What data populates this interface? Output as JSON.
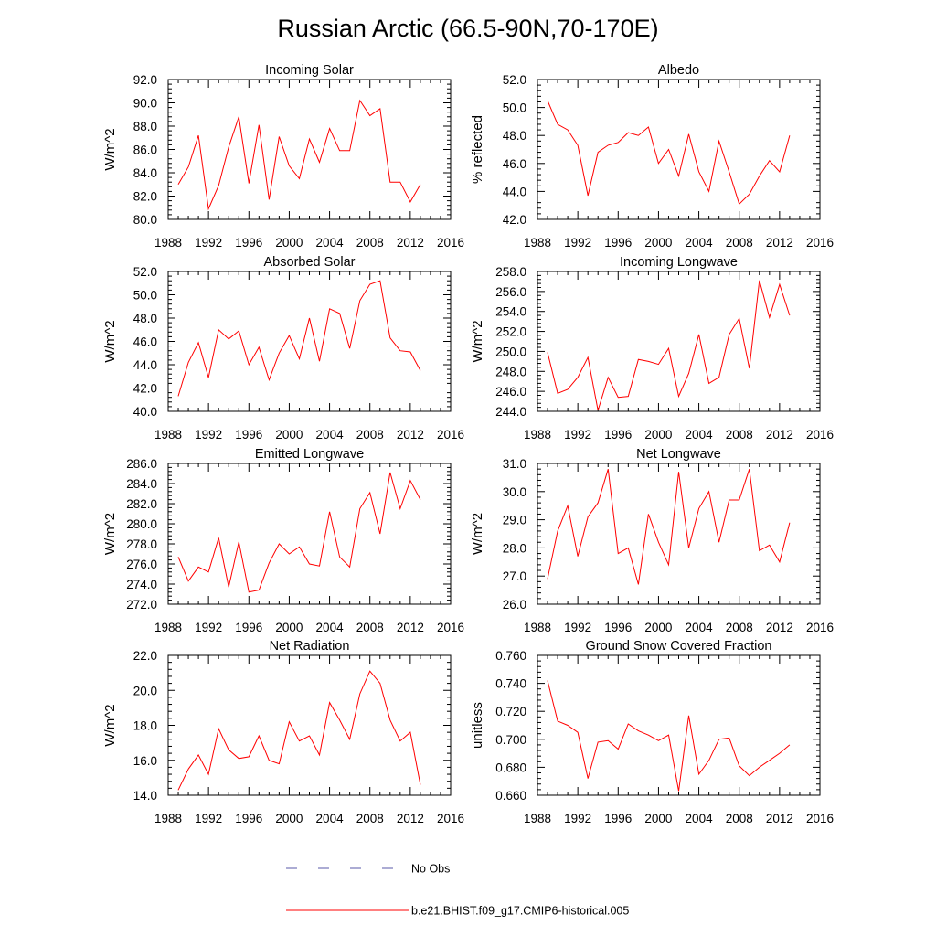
{
  "title": "Russian Arctic (66.5-90N,70-170E)",
  "colors": {
    "model": "#ff0000",
    "obs": "#5a5aa8",
    "axis": "#000000"
  },
  "legend": [
    {
      "label": "No Obs",
      "style": "dashed",
      "color": "#5a5aa8"
    },
    {
      "label": "b.e21.BHIST.f09_g17.CMIP6-historical.005",
      "style": "solid",
      "color": "#ff0000"
    }
  ],
  "chart_data": [
    {
      "type": "line",
      "title": "Incoming Solar",
      "ylabel": "W/m^2",
      "xlim": [
        1988,
        2016
      ],
      "xticks": [
        1988,
        1992,
        1996,
        2000,
        2004,
        2008,
        2012,
        2016
      ],
      "xtick_labels": [
        "1988",
        "1992",
        "1996",
        "2000",
        "2004",
        "2008",
        "2012",
        "2016"
      ],
      "ylim": [
        80.0,
        92.0
      ],
      "yticks": [
        80.0,
        82.0,
        84.0,
        86.0,
        88.0,
        90.0,
        92.0
      ],
      "ytick_labels": [
        "80.0",
        "82.0",
        "84.0",
        "86.0",
        "88.0",
        "90.0",
        "92.0"
      ],
      "x": [
        1989,
        1990,
        1991,
        1992,
        1993,
        1994,
        1995,
        1996,
        1997,
        1998,
        1999,
        2000,
        2001,
        2002,
        2003,
        2004,
        2005,
        2006,
        2007,
        2008,
        2009,
        2010,
        2011,
        2012,
        2013
      ],
      "series": [
        {
          "name": "b.e21.BHIST.f09_g17.CMIP6-historical.005",
          "values": [
            83.0,
            84.5,
            87.2,
            80.9,
            82.9,
            86.2,
            88.8,
            83.1,
            88.1,
            81.7,
            87.1,
            84.6,
            83.5,
            86.9,
            84.9,
            87.8,
            85.9,
            85.9,
            90.2,
            88.9,
            89.5,
            83.2,
            83.2,
            81.5,
            83.0
          ]
        }
      ]
    },
    {
      "type": "line",
      "title": "Albedo",
      "ylabel": "% reflected",
      "xlim": [
        1988,
        2016
      ],
      "xticks": [
        1988,
        1992,
        1996,
        2000,
        2004,
        2008,
        2012,
        2016
      ],
      "xtick_labels": [
        "1988",
        "1992",
        "1996",
        "2000",
        "2004",
        "2008",
        "2012",
        "2016"
      ],
      "ylim": [
        42.0,
        52.0
      ],
      "yticks": [
        42.0,
        44.0,
        46.0,
        48.0,
        50.0,
        52.0
      ],
      "ytick_labels": [
        "42.0",
        "44.0",
        "46.0",
        "48.0",
        "50.0",
        "52.0"
      ],
      "x": [
        1989,
        1990,
        1991,
        1992,
        1993,
        1994,
        1995,
        1996,
        1997,
        1998,
        1999,
        2000,
        2001,
        2002,
        2003,
        2004,
        2005,
        2006,
        2007,
        2008,
        2009,
        2010,
        2011,
        2012,
        2013
      ],
      "series": [
        {
          "name": "b.e21.BHIST.f09_g17.CMIP6-historical.005",
          "values": [
            50.5,
            48.8,
            48.4,
            47.3,
            43.7,
            46.8,
            47.3,
            47.5,
            48.2,
            48.0,
            48.6,
            46.0,
            47.0,
            45.1,
            48.1,
            45.4,
            44.0,
            47.6,
            45.4,
            43.1,
            43.8,
            45.1,
            46.2,
            45.4,
            48.0
          ]
        }
      ]
    },
    {
      "type": "line",
      "title": "Absorbed Solar",
      "ylabel": "W/m^2",
      "xlim": [
        1988,
        2016
      ],
      "xticks": [
        1988,
        1992,
        1996,
        2000,
        2004,
        2008,
        2012,
        2016
      ],
      "xtick_labels": [
        "1988",
        "1992",
        "1996",
        "2000",
        "2004",
        "2008",
        "2012",
        "2016"
      ],
      "ylim": [
        40.0,
        52.0
      ],
      "yticks": [
        40.0,
        42.0,
        44.0,
        46.0,
        48.0,
        50.0,
        52.0
      ],
      "ytick_labels": [
        "40.0",
        "42.0",
        "44.0",
        "46.0",
        "48.0",
        "50.0",
        "52.0"
      ],
      "x": [
        1989,
        1990,
        1991,
        1992,
        1993,
        1994,
        1995,
        1996,
        1997,
        1998,
        1999,
        2000,
        2001,
        2002,
        2003,
        2004,
        2005,
        2006,
        2007,
        2008,
        2009,
        2010,
        2011,
        2012,
        2013
      ],
      "series": [
        {
          "name": "b.e21.BHIST.f09_g17.CMIP6-historical.005",
          "values": [
            41.3,
            44.2,
            45.9,
            42.9,
            47.0,
            46.2,
            46.9,
            44.0,
            45.5,
            42.7,
            45.0,
            46.5,
            44.5,
            48.0,
            44.3,
            48.8,
            48.4,
            45.4,
            49.5,
            50.9,
            51.2,
            46.3,
            45.2,
            45.1,
            43.5
          ]
        }
      ]
    },
    {
      "type": "line",
      "title": "Incoming Longwave",
      "ylabel": "W/m^2",
      "xlim": [
        1988,
        2016
      ],
      "xticks": [
        1988,
        1992,
        1996,
        2000,
        2004,
        2008,
        2012,
        2016
      ],
      "xtick_labels": [
        "1988",
        "1992",
        "1996",
        "2000",
        "2004",
        "2008",
        "2012",
        "2016"
      ],
      "ylim": [
        244.0,
        258.0
      ],
      "yticks": [
        244.0,
        246.0,
        248.0,
        250.0,
        252.0,
        254.0,
        256.0,
        258.0
      ],
      "ytick_labels": [
        "244.0",
        "246.0",
        "248.0",
        "250.0",
        "252.0",
        "254.0",
        "256.0",
        "258.0"
      ],
      "x": [
        1989,
        1990,
        1991,
        1992,
        1993,
        1994,
        1995,
        1996,
        1997,
        1998,
        1999,
        2000,
        2001,
        2002,
        2003,
        2004,
        2005,
        2006,
        2007,
        2008,
        2009,
        2010,
        2011,
        2012,
        2013
      ],
      "series": [
        {
          "name": "b.e21.BHIST.f09_g17.CMIP6-historical.005",
          "values": [
            249.9,
            245.8,
            246.2,
            247.4,
            249.4,
            244.1,
            247.4,
            245.4,
            245.5,
            249.2,
            249.0,
            248.7,
            250.3,
            245.5,
            247.8,
            251.7,
            246.8,
            247.4,
            251.7,
            253.3,
            248.3,
            257.1,
            253.4,
            256.7,
            253.6
          ]
        }
      ]
    },
    {
      "type": "line",
      "title": "Emitted Longwave",
      "ylabel": "W/m^2",
      "xlim": [
        1988,
        2016
      ],
      "xticks": [
        1988,
        1992,
        1996,
        2000,
        2004,
        2008,
        2012,
        2016
      ],
      "xtick_labels": [
        "1988",
        "1992",
        "1996",
        "2000",
        "2004",
        "2008",
        "2012",
        "2016"
      ],
      "ylim": [
        272.0,
        286.0
      ],
      "yticks": [
        272.0,
        274.0,
        276.0,
        278.0,
        280.0,
        282.0,
        284.0,
        286.0
      ],
      "ytick_labels": [
        "272.0",
        "274.0",
        "276.0",
        "278.0",
        "280.0",
        "282.0",
        "284.0",
        "286.0"
      ],
      "x": [
        1989,
        1990,
        1991,
        1992,
        1993,
        1994,
        1995,
        1996,
        1997,
        1998,
        1999,
        2000,
        2001,
        2002,
        2003,
        2004,
        2005,
        2006,
        2007,
        2008,
        2009,
        2010,
        2011,
        2012,
        2013
      ],
      "series": [
        {
          "name": "b.e21.BHIST.f09_g17.CMIP6-historical.005",
          "values": [
            276.7,
            274.3,
            275.7,
            275.2,
            278.6,
            273.7,
            278.2,
            273.2,
            273.4,
            276.1,
            278.0,
            277.0,
            277.7,
            276.0,
            275.8,
            281.2,
            276.7,
            275.7,
            281.5,
            283.1,
            279.0,
            285.1,
            281.5,
            284.3,
            282.4
          ]
        }
      ]
    },
    {
      "type": "line",
      "title": "Net Longwave",
      "ylabel": "W/m^2",
      "xlim": [
        1988,
        2016
      ],
      "xticks": [
        1988,
        1992,
        1996,
        2000,
        2004,
        2008,
        2012,
        2016
      ],
      "xtick_labels": [
        "1988",
        "1992",
        "1996",
        "2000",
        "2004",
        "2008",
        "2012",
        "2016"
      ],
      "ylim": [
        26.0,
        31.0
      ],
      "yticks": [
        26.0,
        27.0,
        28.0,
        29.0,
        30.0,
        31.0
      ],
      "ytick_labels": [
        "26.0",
        "27.0",
        "28.0",
        "29.0",
        "30.0",
        "31.0"
      ],
      "x": [
        1989,
        1990,
        1991,
        1992,
        1993,
        1994,
        1995,
        1996,
        1997,
        1998,
        1999,
        2000,
        2001,
        2002,
        2003,
        2004,
        2005,
        2006,
        2007,
        2008,
        2009,
        2010,
        2011,
        2012,
        2013
      ],
      "series": [
        {
          "name": "b.e21.BHIST.f09_g17.CMIP6-historical.005",
          "values": [
            26.9,
            28.6,
            29.5,
            27.7,
            29.1,
            29.6,
            30.8,
            27.8,
            28.0,
            26.7,
            29.2,
            28.2,
            27.4,
            30.7,
            28.0,
            29.4,
            30.0,
            28.2,
            29.7,
            29.7,
            30.8,
            27.9,
            28.1,
            27.5,
            28.9
          ]
        }
      ]
    },
    {
      "type": "line",
      "title": "Net Radiation",
      "ylabel": "W/m^2",
      "xlim": [
        1988,
        2016
      ],
      "xticks": [
        1988,
        1992,
        1996,
        2000,
        2004,
        2008,
        2012,
        2016
      ],
      "xtick_labels": [
        "1988",
        "1992",
        "1996",
        "2000",
        "2004",
        "2008",
        "2012",
        "2016"
      ],
      "ylim": [
        14.0,
        22.0
      ],
      "yticks": [
        14.0,
        16.0,
        18.0,
        20.0,
        22.0
      ],
      "ytick_labels": [
        "14.0",
        "16.0",
        "18.0",
        "20.0",
        "22.0"
      ],
      "x": [
        1989,
        1990,
        1991,
        1992,
        1993,
        1994,
        1995,
        1996,
        1997,
        1998,
        1999,
        2000,
        2001,
        2002,
        2003,
        2004,
        2005,
        2006,
        2007,
        2008,
        2009,
        2010,
        2011,
        2012,
        2013
      ],
      "series": [
        {
          "name": "b.e21.BHIST.f09_g17.CMIP6-historical.005",
          "values": [
            14.3,
            15.5,
            16.3,
            15.2,
            17.8,
            16.6,
            16.1,
            16.2,
            17.4,
            16.0,
            15.8,
            18.2,
            17.1,
            17.4,
            16.3,
            19.3,
            18.3,
            17.2,
            19.8,
            21.1,
            20.4,
            18.3,
            17.1,
            17.6,
            14.6
          ]
        }
      ]
    },
    {
      "type": "line",
      "title": "Ground Snow Covered Fraction",
      "ylabel": "unitless",
      "xlim": [
        1988,
        2016
      ],
      "xticks": [
        1988,
        1992,
        1996,
        2000,
        2004,
        2008,
        2012,
        2016
      ],
      "xtick_labels": [
        "1988",
        "1992",
        "1996",
        "2000",
        "2004",
        "2008",
        "2012",
        "2016"
      ],
      "ylim": [
        0.66,
        0.76
      ],
      "yticks": [
        0.66,
        0.68,
        0.7,
        0.72,
        0.74,
        0.76
      ],
      "ytick_labels": [
        "0.660",
        "0.680",
        "0.700",
        "0.720",
        "0.740",
        "0.760"
      ],
      "x": [
        1989,
        1990,
        1991,
        1992,
        1993,
        1994,
        1995,
        1996,
        1997,
        1998,
        1999,
        2000,
        2001,
        2002,
        2003,
        2004,
        2005,
        2006,
        2007,
        2008,
        2009,
        2010,
        2011,
        2012,
        2013
      ],
      "series": [
        {
          "name": "b.e21.BHIST.f09_g17.CMIP6-historical.005",
          "values": [
            0.742,
            0.713,
            0.71,
            0.705,
            0.672,
            0.698,
            0.699,
            0.693,
            0.711,
            0.706,
            0.703,
            0.699,
            0.703,
            0.663,
            0.717,
            0.675,
            0.685,
            0.7,
            0.701,
            0.681,
            0.674,
            0.68,
            0.685,
            0.69,
            0.696
          ]
        }
      ]
    }
  ]
}
